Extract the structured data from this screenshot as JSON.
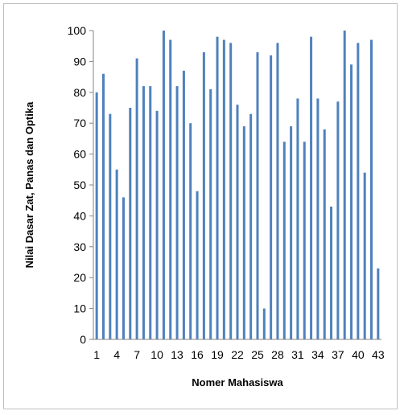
{
  "chart_data": {
    "type": "bar",
    "xlabel": "Nomer Mahasiswa",
    "ylabel": "Nilai Dasar Zat, Panas dan Optika",
    "ylim": [
      0,
      100
    ],
    "yticks": [
      0,
      10,
      20,
      30,
      40,
      50,
      60,
      70,
      80,
      90,
      100
    ],
    "xtick_labels": [
      "1",
      "4",
      "7",
      "10",
      "13",
      "16",
      "19",
      "22",
      "25",
      "28",
      "31",
      "34",
      "37",
      "40",
      "43"
    ],
    "bar_color": "#4f81bd",
    "grid": false,
    "legend": "none",
    "categories": [
      "1",
      "2",
      "3",
      "4",
      "5",
      "6",
      "7",
      "8",
      "9",
      "10",
      "11",
      "12",
      "13",
      "14",
      "15",
      "16",
      "17",
      "18",
      "19",
      "20",
      "21",
      "22",
      "23",
      "24",
      "25",
      "26",
      "27",
      "28",
      "29",
      "30",
      "31",
      "32",
      "33",
      "34",
      "35",
      "36",
      "37",
      "38",
      "39",
      "40",
      "41",
      "42",
      "43"
    ],
    "values": [
      80,
      86,
      73,
      55,
      46,
      75,
      91,
      82,
      82,
      74,
      100,
      97,
      82,
      87,
      70,
      48,
      93,
      81,
      98,
      97,
      96,
      76,
      69,
      73,
      93,
      10,
      92,
      96,
      64,
      69,
      78,
      64,
      98,
      78,
      68,
      43,
      77,
      100,
      89,
      96,
      54,
      97,
      23
    ]
  }
}
